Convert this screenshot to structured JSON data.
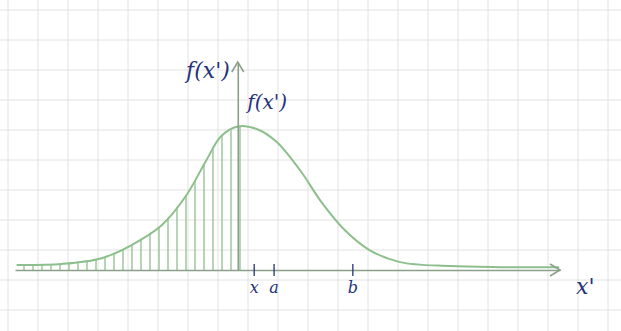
{
  "chart_data": {
    "type": "line",
    "x_label": "x'",
    "y_label": "f(x')",
    "x": [
      -2.78,
      -2.21,
      -1.71,
      -1.34,
      -0.96,
      -0.65,
      -0.4,
      -0.21,
      0,
      0.23,
      0.48,
      0.79,
      1.04,
      1.35,
      1.66,
      2.04,
      2.66,
      3.29,
      4.04
    ],
    "values": [
      0.014,
      0.017,
      0.033,
      0.069,
      0.124,
      0.207,
      0.304,
      0.373,
      0.4,
      0.394,
      0.359,
      0.276,
      0.193,
      0.11,
      0.055,
      0.022,
      0.011,
      0.008,
      0.008
    ],
    "color": "#8dbf8d",
    "xlim": [
      -2.8,
      4.05
    ],
    "ylim": [
      0,
      0.58
    ],
    "xticks": [
      {
        "value": 0.2,
        "label": "x"
      },
      {
        "value": 0.45,
        "label": "a"
      },
      {
        "value": 1.44,
        "label": "b"
      }
    ],
    "tick_labels": "x",
    "annotations": [
      {
        "text": "f(x')",
        "x": 0.12,
        "y": 0.45
      }
    ],
    "shade_until": 0.1
  }
}
